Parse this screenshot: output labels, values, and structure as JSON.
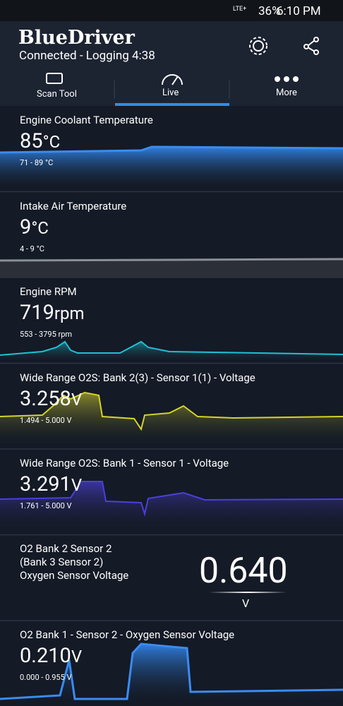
{
  "status_bar": {
    "network": "LTE+",
    "battery": "36%",
    "time": "6:10 PM"
  },
  "header": {
    "title": "BlueDriver",
    "subtitle": "Connected - Logging 4:38"
  },
  "tabs": [
    "Scan Tool",
    "Live",
    "More"
  ],
  "panels": [
    {
      "name": "Engine Coolant Temperature",
      "value": "85",
      "unit": "°C",
      "range": "71 - 89 °C"
    },
    {
      "name": "Intake Air Temperature",
      "value": "9",
      "unit": "°C",
      "range": "4 - 9 °C"
    },
    {
      "name": "Engine RPM",
      "value": "719",
      "unit": "rpm",
      "range": "553 - 3795 rpm"
    },
    {
      "name": "Wide Range O2S: Bank 2(3) - Sensor 1(1) - Voltage",
      "value": "3.258",
      "unit": "V",
      "range": "1.494 - 5.000 V"
    },
    {
      "name": "Wide Range O2S: Bank 1 - Sensor 1 - Voltage",
      "value": "3.291",
      "unit": "V",
      "range": "1.761 - 5.000 V"
    },
    {
      "name": [
        "O2 Bank 2 Sensor 2",
        "(Bank 3 Sensor 2)",
        "Oxygen Sensor Voltage"
      ],
      "value": "0.640",
      "unit": "V"
    },
    {
      "name": "O2 Bank 1 - Sensor 2 - Oxygen Sensor Voltage",
      "value": "0.210",
      "unit": "V",
      "range": "0.000 - 0.955 V"
    }
  ]
}
